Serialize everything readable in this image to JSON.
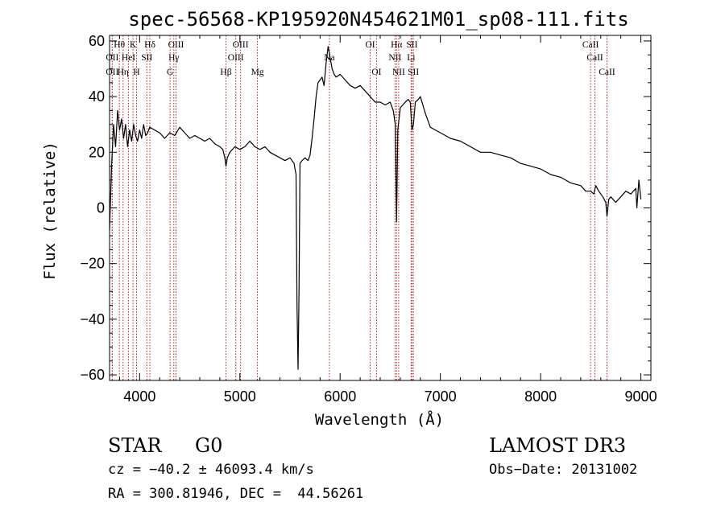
{
  "chart_data": {
    "type": "line",
    "title": "spec-56568-KP195920N454621M01_sp08-111.fits",
    "xlabel": "Wavelength (Å)",
    "ylabel": "Flux (relative)",
    "xlim": [
      3700,
      9100
    ],
    "ylim": [
      -62,
      62
    ],
    "x_ticks": [
      4000,
      5000,
      6000,
      7000,
      8000,
      9000
    ],
    "y_ticks": [
      -60,
      -40,
      -20,
      0,
      20,
      40,
      60
    ],
    "colors": {
      "spectrum": "#000000",
      "line_marker": "#b22222"
    },
    "series": [
      {
        "name": "spectrum",
        "x": [
          3700,
          3720,
          3740,
          3760,
          3780,
          3800,
          3820,
          3840,
          3860,
          3880,
          3900,
          3920,
          3940,
          3960,
          3980,
          4000,
          4020,
          4040,
          4060,
          4080,
          4100,
          4150,
          4200,
          4250,
          4300,
          4350,
          4400,
          4450,
          4500,
          4550,
          4600,
          4650,
          4700,
          4750,
          4800,
          4830,
          4850,
          4861,
          4875,
          4900,
          4950,
          5000,
          5050,
          5100,
          5150,
          5200,
          5250,
          5300,
          5350,
          5400,
          5450,
          5500,
          5540,
          5560,
          5570,
          5580,
          5590,
          5600,
          5620,
          5650,
          5680,
          5700,
          5720,
          5740,
          5760,
          5780,
          5800,
          5820,
          5840,
          5860,
          5880,
          5900,
          5920,
          5940,
          5960,
          6000,
          6050,
          6100,
          6150,
          6200,
          6250,
          6300,
          6350,
          6400,
          6450,
          6500,
          6530,
          6550,
          6563,
          6575,
          6600,
          6650,
          6680,
          6700,
          6717,
          6731,
          6750,
          6780,
          6800,
          6850,
          6900,
          6950,
          7000,
          7050,
          7100,
          7200,
          7300,
          7400,
          7500,
          7600,
          7700,
          7800,
          7900,
          8000,
          8050,
          8100,
          8200,
          8300,
          8400,
          8450,
          8500,
          8530,
          8550,
          8580,
          8620,
          8650,
          8662,
          8680,
          8700,
          8750,
          8800,
          8850,
          8900,
          8950,
          8960,
          8980,
          9000
        ],
        "y": [
          -8,
          15,
          30,
          22,
          35,
          28,
          32,
          25,
          30,
          22,
          28,
          24,
          30,
          26,
          24,
          28,
          25,
          30,
          26,
          27,
          29,
          28,
          27,
          25,
          27,
          26,
          29,
          27,
          25,
          26,
          25,
          24,
          25,
          23,
          22,
          21,
          18,
          15,
          18,
          20,
          22,
          21,
          22,
          24,
          22,
          21,
          22,
          20,
          19,
          18,
          17,
          18,
          16,
          12,
          -35,
          -58,
          -30,
          16,
          17,
          18,
          17,
          19,
          25,
          32,
          40,
          45,
          46,
          47,
          44,
          52,
          58,
          54,
          50,
          48,
          47,
          48,
          46,
          44,
          43,
          44,
          42,
          40,
          38,
          38,
          37,
          38,
          35,
          30,
          -5,
          28,
          36,
          38,
          39,
          38,
          28,
          30,
          38,
          39,
          40,
          34,
          29,
          28,
          27,
          26,
          25,
          24,
          22,
          20,
          20,
          19,
          18,
          16,
          15,
          14,
          13,
          12,
          11,
          9,
          8,
          6,
          6,
          5,
          8,
          6,
          4,
          2,
          -3,
          3,
          4,
          2,
          4,
          6,
          5,
          7,
          0,
          10,
          3
        ]
      }
    ],
    "spectral_lines": [
      {
        "label": "OII",
        "wavelength": 3727,
        "row": 2
      },
      {
        "label": "Hθ",
        "wavelength": 3798,
        "row": 0
      },
      {
        "label": "OII",
        "wavelength": 3727,
        "row": 1
      },
      {
        "label": "Hη",
        "wavelength": 3835,
        "row": 2
      },
      {
        "label": "HeI",
        "wavelength": 3889,
        "row": 1
      },
      {
        "label": "K",
        "wavelength": 3934,
        "row": 0
      },
      {
        "label": "H",
        "wavelength": 3969,
        "row": 2
      },
      {
        "label": "SII",
        "wavelength": 4072,
        "row": 1
      },
      {
        "label": "Hδ",
        "wavelength": 4102,
        "row": 0
      },
      {
        "label": "OIII",
        "wavelength": 4363,
        "row": 0
      },
      {
        "label": "Hγ",
        "wavelength": 4341,
        "row": 1
      },
      {
        "label": "G",
        "wavelength": 4304,
        "row": 2
      },
      {
        "label": "Hβ",
        "wavelength": 4861,
        "row": 2
      },
      {
        "label": "OIII",
        "wavelength": 4959,
        "row": 1
      },
      {
        "label": "OIII",
        "wavelength": 5007,
        "row": 0
      },
      {
        "label": "Mg",
        "wavelength": 5175,
        "row": 2
      },
      {
        "label": "Na",
        "wavelength": 5893,
        "row": 1
      },
      {
        "label": "OI",
        "wavelength": 6300,
        "row": 0
      },
      {
        "label": "OI",
        "wavelength": 6363,
        "row": 2
      },
      {
        "label": "Hα",
        "wavelength": 6563,
        "row": 0
      },
      {
        "label": "NII",
        "wavelength": 6548,
        "row": 1
      },
      {
        "label": "NII",
        "wavelength": 6584,
        "row": 2
      },
      {
        "label": "SII",
        "wavelength": 6717,
        "row": 0
      },
      {
        "label": "Li",
        "wavelength": 6708,
        "row": 1
      },
      {
        "label": "SII",
        "wavelength": 6731,
        "row": 2
      },
      {
        "label": "CaII",
        "wavelength": 8498,
        "row": 0
      },
      {
        "label": "CaII",
        "wavelength": 8542,
        "row": 1
      },
      {
        "label": "CaII",
        "wavelength": 8662,
        "row": 2
      }
    ]
  },
  "info": {
    "object_class": "STAR",
    "subclass": "G0",
    "survey": "LAMOST DR3",
    "cz": "cz = −40.2 ± 46093.4 km/s",
    "obs_date": "Obs−Date: 20131002",
    "coords": "RA = 300.81946, DEC =  44.56261"
  }
}
